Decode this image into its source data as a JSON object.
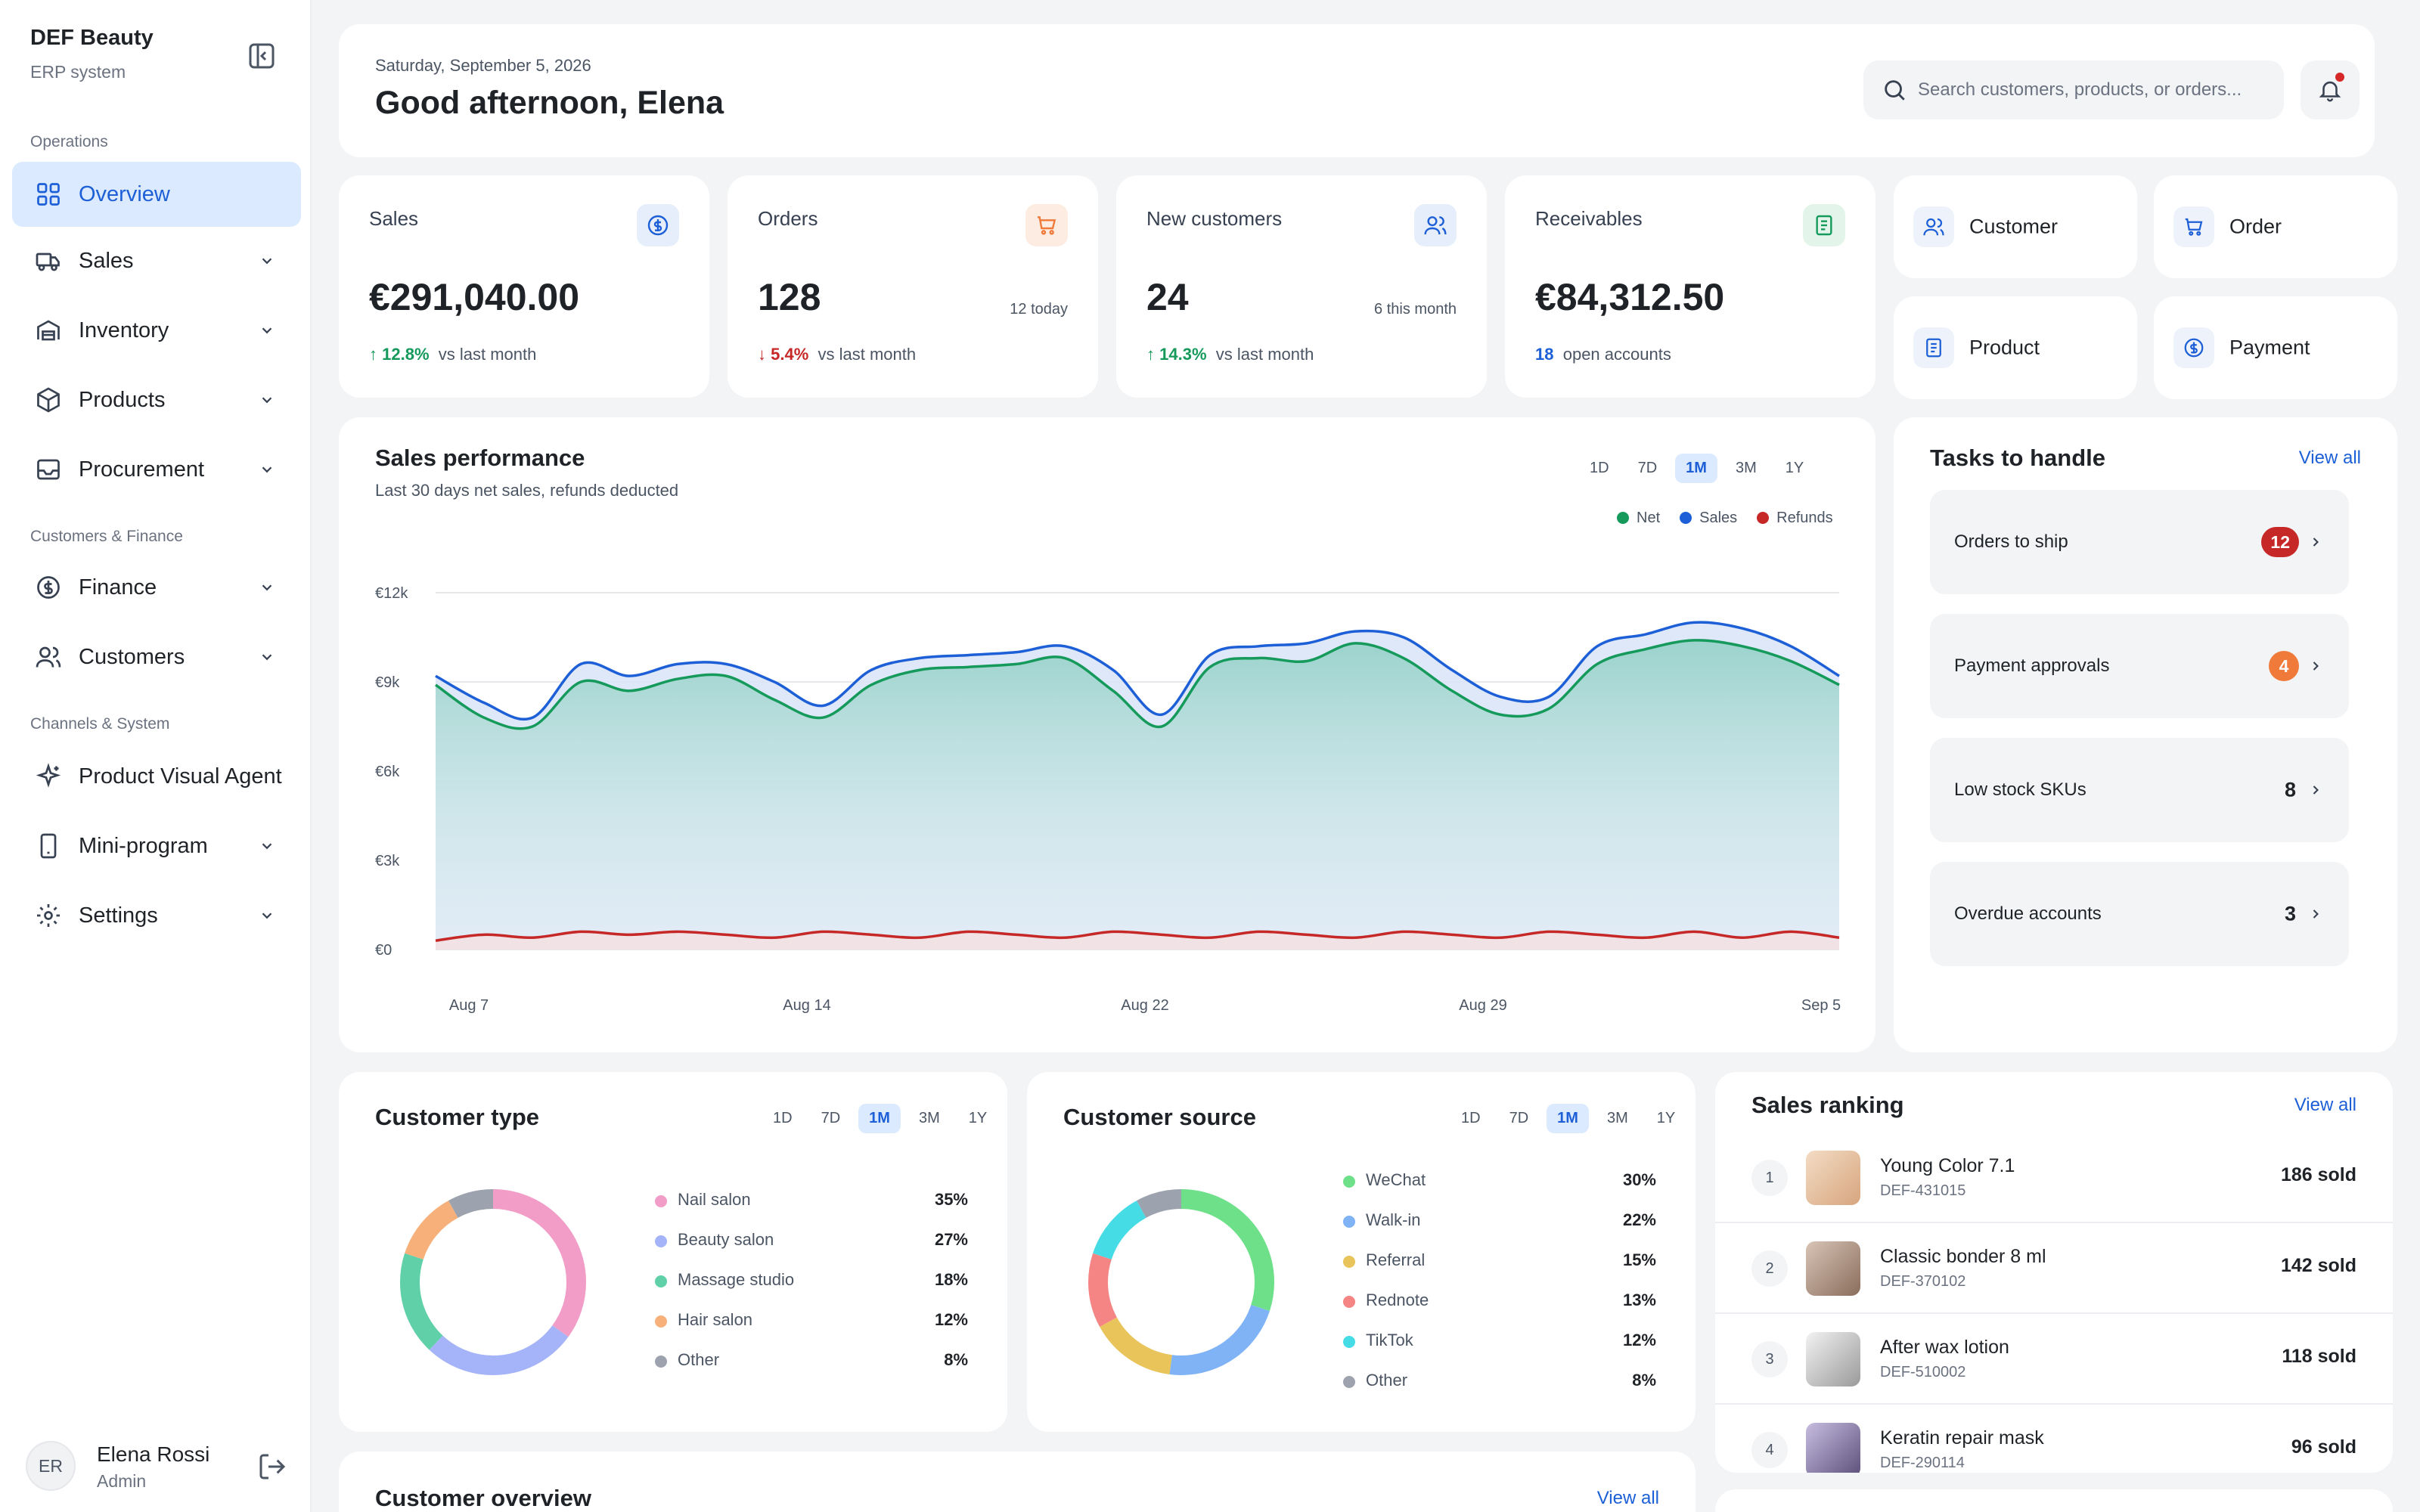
{
  "brand": {
    "title": "DEF Beauty",
    "subtitle": "ERP system"
  },
  "sidebar": {
    "sections": [
      "Operations",
      "Customers & Finance",
      "Channels & System"
    ],
    "items": [
      {
        "label": "Overview",
        "icon": "grid-icon"
      },
      {
        "label": "Sales",
        "icon": "truck-icon"
      },
      {
        "label": "Inventory",
        "icon": "warehouse-icon"
      },
      {
        "label": "Products",
        "icon": "box-icon"
      },
      {
        "label": "Procurement",
        "icon": "tray-icon"
      },
      {
        "label": "Finance",
        "icon": "coin-icon"
      },
      {
        "label": "Customers",
        "icon": "users-icon"
      },
      {
        "label": "Product Visual Agent",
        "icon": "sparkle-icon"
      },
      {
        "label": "Mini-program",
        "icon": "phone-icon"
      },
      {
        "label": "Settings",
        "icon": "gear-icon"
      }
    ]
  },
  "user": {
    "initials": "ER",
    "name": "Elena Rossi",
    "role": "Admin"
  },
  "header": {
    "date": "Saturday, September 5, 2026",
    "greeting": "Good afternoon, Elena",
    "search_placeholder": "Search customers, products, or orders..."
  },
  "kpis": [
    {
      "title": "Sales",
      "value": "€291,040.00",
      "sub": "",
      "delta": "12.8%",
      "delta_dir": "up",
      "foot": "vs last month",
      "icon": "dollar-icon",
      "accent": "#1d5fd6"
    },
    {
      "title": "Orders",
      "value": "128",
      "sub": "12 today",
      "delta": "5.4%",
      "delta_dir": "down",
      "foot": "vs last month",
      "icon": "cart-icon",
      "accent": "#f07a3a"
    },
    {
      "title": "New customers",
      "value": "24",
      "sub": "6 this month",
      "delta": "14.3%",
      "delta_dir": "up",
      "foot": "vs last month",
      "icon": "users-icon",
      "accent": "#1d5fd6"
    },
    {
      "title": "Receivables",
      "value": "€84,312.50",
      "sub": "",
      "count": "18",
      "foot": "open accounts",
      "icon": "document-icon",
      "accent": "#159a5b"
    }
  ],
  "quick_actions": [
    {
      "label": "Customer",
      "icon": "users-icon"
    },
    {
      "label": "Order",
      "icon": "cart-icon"
    },
    {
      "label": "Product",
      "icon": "document-icon"
    },
    {
      "label": "Payment",
      "icon": "dollar-icon"
    }
  ],
  "sales_performance": {
    "title": "Sales performance",
    "subtitle": "Last 30 days net sales, refunds deducted",
    "ranges": [
      "1D",
      "7D",
      "1M",
      "3M",
      "1Y"
    ],
    "selected_range": "1M",
    "legend": [
      {
        "name": "Net",
        "color": "#159a5b"
      },
      {
        "name": "Sales",
        "color": "#1d5fd6"
      },
      {
        "name": "Refunds",
        "color": "#c62828"
      }
    ]
  },
  "chart_data": {
    "type": "area",
    "x_ticks": [
      "Aug 7",
      "Aug 14",
      "Aug 22",
      "Aug 29",
      "Sep 5"
    ],
    "y_ticks": [
      "€12k",
      "€9k",
      "€6k",
      "€3k",
      "€0"
    ],
    "ylim": [
      0,
      12000
    ],
    "series": [
      {
        "name": "Sales",
        "values": [
          9200,
          8300,
          7800,
          9600,
          9200,
          9600,
          9600,
          9000,
          8200,
          9400,
          9800,
          9900,
          10000,
          10200,
          9400,
          7900,
          9900,
          10200,
          10300,
          10700,
          10500,
          9400,
          8500,
          8500,
          10200,
          10600,
          11000,
          10800,
          10200,
          9200
        ]
      },
      {
        "name": "Net",
        "values": [
          8900,
          7800,
          7500,
          9000,
          8700,
          9100,
          9200,
          8400,
          7800,
          8900,
          9400,
          9500,
          9600,
          9800,
          8700,
          7500,
          9500,
          9800,
          9700,
          10300,
          9800,
          8700,
          7900,
          8100,
          9600,
          10100,
          10400,
          10200,
          9700,
          8900
        ]
      },
      {
        "name": "Refunds",
        "values": [
          300,
          500,
          400,
          600,
          500,
          600,
          500,
          400,
          600,
          500,
          400,
          600,
          500,
          400,
          600,
          500,
          400,
          600,
          500,
          400,
          600,
          500,
          400,
          600,
          500,
          400,
          600,
          400,
          600,
          400
        ]
      }
    ]
  },
  "tasks": {
    "title": "Tasks to handle",
    "view_all": "View all",
    "items": [
      {
        "label": "Orders to ship",
        "count": "12",
        "badge_color": "#c62828"
      },
      {
        "label": "Payment approvals",
        "count": "4",
        "badge_color": "#f07a3a"
      },
      {
        "label": "Low stock SKUs",
        "count": "8",
        "badge_color": ""
      },
      {
        "label": "Overdue accounts",
        "count": "3",
        "badge_color": ""
      }
    ]
  },
  "customer_type": {
    "title": "Customer type",
    "ranges": [
      "1D",
      "7D",
      "1M",
      "3M",
      "1Y"
    ],
    "selected_range": "1M",
    "segments": [
      {
        "name": "Nail salon",
        "pct": "35%",
        "value": 35,
        "color": "#f29cc8"
      },
      {
        "name": "Beauty salon",
        "pct": "27%",
        "value": 27,
        "color": "#a5b4f8"
      },
      {
        "name": "Massage studio",
        "pct": "18%",
        "value": 18,
        "color": "#5fd0a8"
      },
      {
        "name": "Hair salon",
        "pct": "12%",
        "value": 12,
        "color": "#f8b07a"
      },
      {
        "name": "Other",
        "pct": "8%",
        "value": 8,
        "color": "#9ca3af"
      }
    ]
  },
  "customer_source": {
    "title": "Customer source",
    "ranges": [
      "1D",
      "7D",
      "1M",
      "3M",
      "1Y"
    ],
    "selected_range": "1M",
    "segments": [
      {
        "name": "WeChat",
        "pct": "30%",
        "value": 30,
        "color": "#6ee08a"
      },
      {
        "name": "Walk-in",
        "pct": "22%",
        "value": 22,
        "color": "#7fb3f5"
      },
      {
        "name": "Referral",
        "pct": "15%",
        "value": 15,
        "color": "#e8c45a"
      },
      {
        "name": "Rednote",
        "pct": "13%",
        "value": 13,
        "color": "#f58585"
      },
      {
        "name": "TikTok",
        "pct": "12%",
        "value": 12,
        "color": "#46dce6"
      },
      {
        "name": "Other",
        "pct": "8%",
        "value": 8,
        "color": "#9ca3af"
      }
    ]
  },
  "sales_ranking": {
    "title": "Sales ranking",
    "view_all": "View all",
    "items": [
      {
        "rank": "1",
        "name": "Young Color 7.1",
        "sku": "DEF-431015",
        "sold": "186 sold",
        "thumb": "#e9c9a8"
      },
      {
        "rank": "2",
        "name": "Classic bonder 8 ml",
        "sku": "DEF-370102",
        "sold": "142 sold",
        "thumb": "#b89a86"
      },
      {
        "rank": "3",
        "name": "After wax lotion",
        "sku": "DEF-510002",
        "sold": "118 sold",
        "thumb": "#d9d9d9"
      },
      {
        "rank": "4",
        "name": "Keratin repair mask",
        "sku": "DEF-290114",
        "sold": "96 sold",
        "thumb": "#9f8fc0"
      }
    ]
  },
  "customer_overview": {
    "title": "Customer overview",
    "view_all": "View all"
  }
}
